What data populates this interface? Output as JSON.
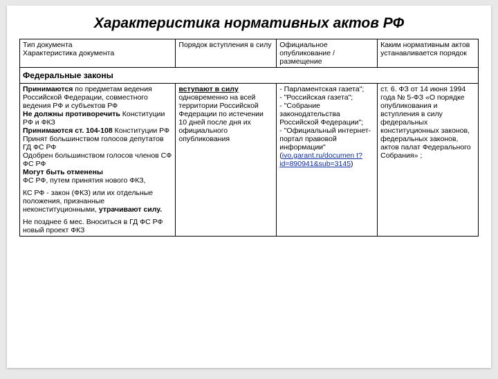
{
  "title": "Характеристика нормативных актов РФ",
  "header": {
    "col1a": "Тип документа",
    "col1b": "Характеристика документа",
    "col2": "Порядок вступления в силу",
    "col3": "Официальное опубликование / размещение",
    "col4": "Каким нормативным актов устанавливается порядок"
  },
  "section1": "Федеральные законы",
  "row1": {
    "c1": {
      "p1a": "Принимаются",
      "p1b": " по предметам ведения Российской Федерации, совместного ведения РФ и субъектов РФ",
      "p2a": "Не должны противоречить",
      "p2b": " Конституции РФ и ФКЗ",
      "p3a": "Принимаются ст. 104-108",
      "p3b": " Конституции РФ",
      "p3c": "Принят большинством голосов депутатов ГД ФС РФ",
      "p3d": "Одобрен большинством голосов членов СФ ФС РФ",
      "p4a": "Могут быть отменены",
      "p4b": "ФС РФ, путем принятия нового ФКЗ,",
      "p5a": "КС РФ - закон (ФКЗ) или их отдельные положения, признанные неконституционными, ",
      "p5b": "утрачивают силу.",
      "p6": "Не позднее 6 мес. Вноситься в ГД ФС РФ новый проект ФКЗ"
    },
    "c2": {
      "a": "вступают в силу",
      "b": " одновременно на всей территории Российской Федерации по истечении 10 дней после дня их официального опубликования"
    },
    "c3": {
      "l1": "- Парламентская газета\";",
      "l2": "- \"Российская газета\";",
      "l3": "- \"Собрание законодательства Российской Федерации\";",
      "l4": "- \"Официальный интернет-портал правовой информации\" (",
      "link": "ivo.garant.ru/documen t?id=890941&sub=3145",
      "l5": ")"
    },
    "c4": "ст. 6. ФЗ от 14 июня 1994 года № 5-ФЗ «О порядке опубликования и вступления в силу федеральных конституционных законов, федеральных законов, актов палат Федерального Собрания» ;"
  }
}
